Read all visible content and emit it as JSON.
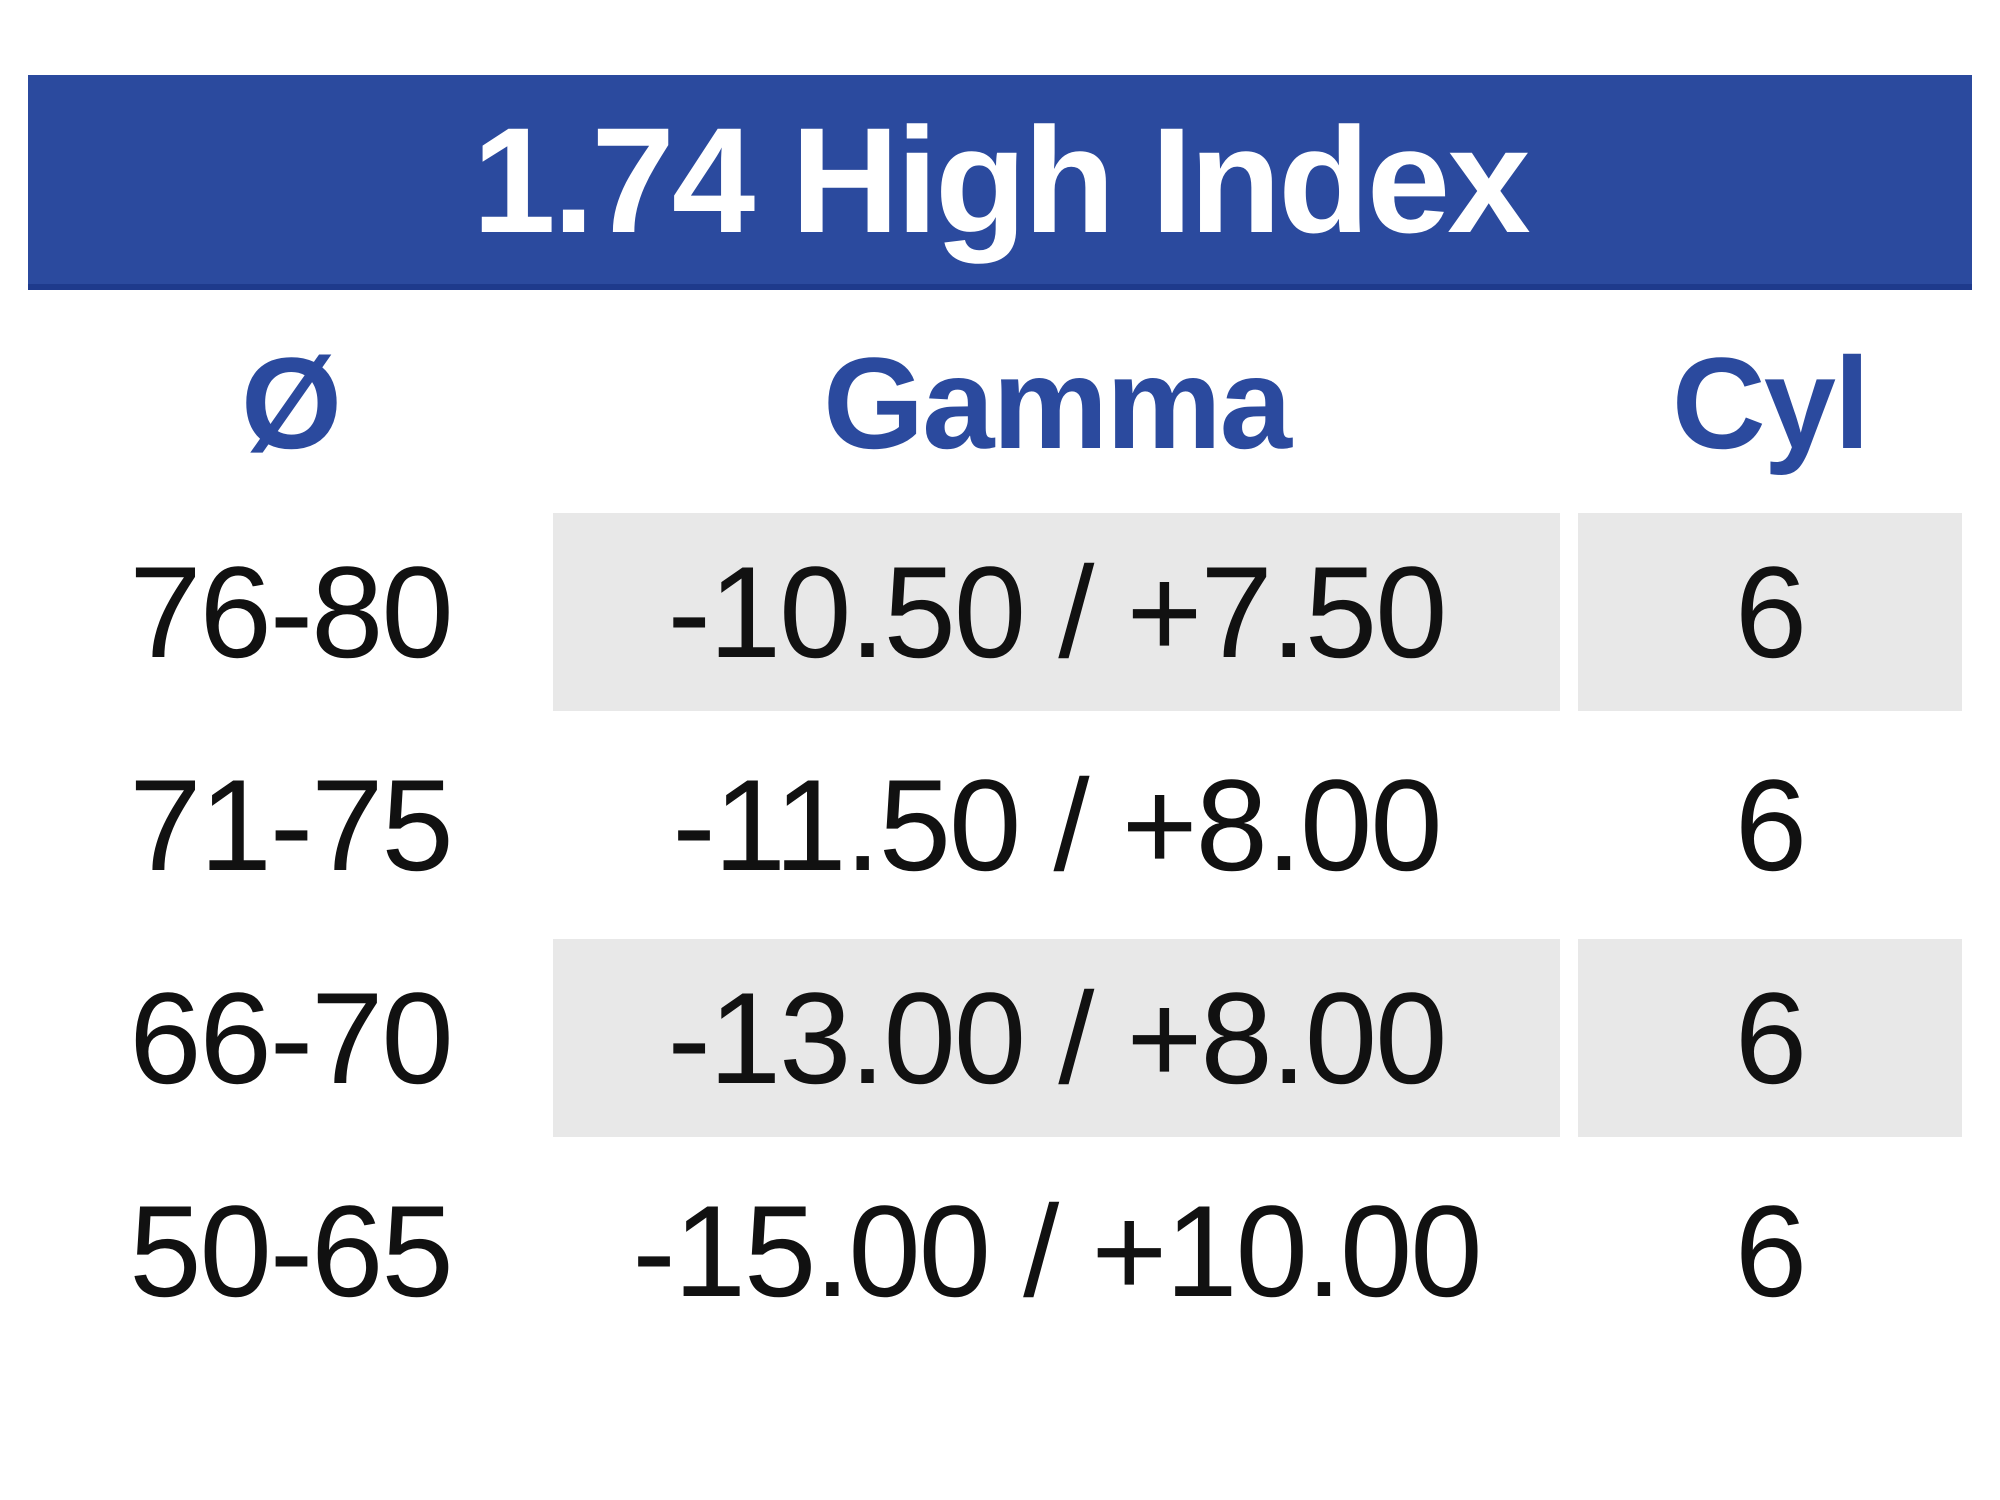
{
  "title": "1.74 High Index",
  "columns": [
    {
      "label": "Ø"
    },
    {
      "label": "Gamma"
    },
    {
      "label": "Cyl"
    }
  ],
  "rows": [
    {
      "diameter": "76-80",
      "gamma": "-10.50 / +7.50",
      "cyl": "6"
    },
    {
      "diameter": "71-75",
      "gamma": "-11.50 / +8.00",
      "cyl": "6"
    },
    {
      "diameter": "66-70",
      "gamma": "-13.00 / +8.00",
      "cyl": "6"
    },
    {
      "diameter": "50-65",
      "gamma": "-15.00 / +10.00",
      "cyl": "6"
    }
  ],
  "colors": {
    "accent": "#2B4A9E",
    "accent-dark": "#1E3A8C",
    "header-text": "#FFFFFF",
    "column-header-text": "#2B4A9E",
    "row-shade": "#E8E8E8",
    "data-text": "#111111"
  }
}
